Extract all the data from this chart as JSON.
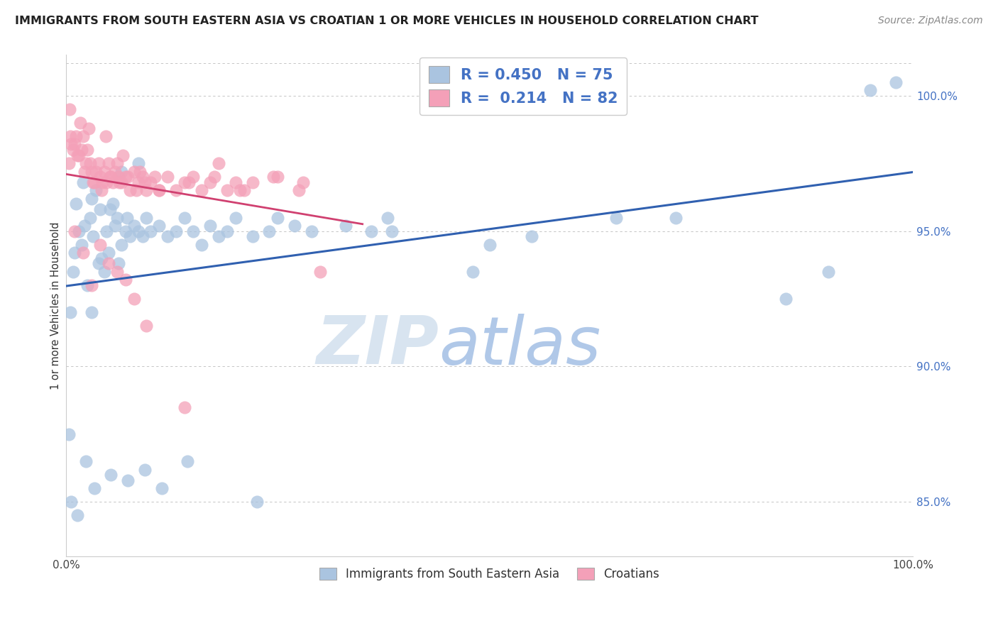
{
  "title": "IMMIGRANTS FROM SOUTH EASTERN ASIA VS CROATIAN 1 OR MORE VEHICLES IN HOUSEHOLD CORRELATION CHART",
  "source": "Source: ZipAtlas.com",
  "ylabel": "1 or more Vehicles in Household",
  "xlim": [
    0.0,
    100.0
  ],
  "ylim": [
    83.0,
    101.5
  ],
  "yticks": [
    85.0,
    90.0,
    95.0,
    100.0
  ],
  "blue_R": 0.45,
  "blue_N": 75,
  "pink_R": 0.214,
  "pink_N": 82,
  "blue_color": "#aac4e0",
  "pink_color": "#f4a0b8",
  "blue_line_color": "#3060b0",
  "pink_line_color": "#d04070",
  "watermark_zip": "ZIP",
  "watermark_atlas": "atlas",
  "watermark_zip_color": "#d8e4f0",
  "watermark_atlas_color": "#b0c8e8",
  "legend_label_blue": "Immigrants from South Eastern Asia",
  "legend_label_pink": "Croatians",
  "blue_x": [
    0.3,
    0.5,
    0.8,
    1.0,
    1.2,
    1.5,
    1.8,
    2.0,
    2.2,
    2.5,
    2.8,
    3.0,
    3.2,
    3.5,
    3.8,
    4.0,
    4.2,
    4.5,
    4.8,
    5.0,
    5.2,
    5.5,
    5.8,
    6.0,
    6.2,
    6.5,
    7.0,
    7.2,
    7.5,
    8.0,
    8.5,
    9.0,
    9.5,
    10.0,
    11.0,
    12.0,
    13.0,
    14.0,
    15.0,
    16.0,
    17.0,
    18.0,
    19.0,
    20.0,
    22.0,
    24.0,
    25.0,
    27.0,
    29.0,
    33.0,
    36.0,
    38.0,
    38.5,
    48.0,
    50.0,
    55.0,
    65.0,
    72.0,
    95.0,
    98.0,
    0.6,
    1.3,
    2.3,
    3.3,
    5.3,
    7.3,
    9.3,
    11.3,
    14.3,
    22.5,
    85.0,
    90.0,
    3.0,
    6.5,
    8.5
  ],
  "blue_y": [
    87.5,
    92.0,
    93.5,
    94.2,
    96.0,
    95.0,
    94.5,
    96.8,
    95.2,
    93.0,
    95.5,
    96.2,
    94.8,
    96.5,
    93.8,
    95.8,
    94.0,
    93.5,
    95.0,
    94.2,
    95.8,
    96.0,
    95.2,
    95.5,
    93.8,
    94.5,
    95.0,
    95.5,
    94.8,
    95.2,
    95.0,
    94.8,
    95.5,
    95.0,
    95.2,
    94.8,
    95.0,
    95.5,
    95.0,
    94.5,
    95.2,
    94.8,
    95.0,
    95.5,
    94.8,
    95.0,
    95.5,
    95.2,
    95.0,
    95.2,
    95.0,
    95.5,
    95.0,
    93.5,
    94.5,
    94.8,
    95.5,
    95.5,
    100.2,
    100.5,
    85.0,
    84.5,
    86.5,
    85.5,
    86.0,
    85.8,
    86.2,
    85.5,
    86.5,
    85.0,
    92.5,
    93.5,
    92.0,
    97.2,
    97.5
  ],
  "pink_x": [
    0.3,
    0.5,
    0.8,
    1.0,
    1.2,
    1.5,
    1.8,
    2.0,
    2.2,
    2.5,
    2.8,
    3.0,
    3.2,
    3.5,
    3.8,
    4.0,
    4.2,
    4.5,
    4.8,
    5.0,
    5.2,
    5.5,
    5.8,
    6.0,
    6.2,
    6.5,
    7.0,
    7.5,
    8.0,
    8.5,
    9.0,
    9.5,
    10.0,
    10.5,
    11.0,
    12.0,
    13.0,
    14.0,
    15.0,
    16.0,
    17.0,
    18.0,
    19.0,
    20.0,
    21.0,
    22.0,
    25.0,
    28.0,
    0.6,
    1.3,
    2.3,
    3.3,
    4.3,
    5.3,
    6.3,
    7.3,
    8.3,
    9.3,
    0.4,
    1.7,
    2.7,
    4.7,
    6.7,
    8.7,
    11.0,
    14.5,
    17.5,
    20.5,
    24.5,
    27.5,
    30.0,
    1.0,
    2.0,
    3.0,
    4.0,
    5.0,
    6.0,
    7.0,
    8.0,
    9.5,
    14.0
  ],
  "pink_y": [
    97.5,
    98.5,
    98.0,
    98.2,
    98.5,
    97.8,
    98.0,
    98.5,
    97.2,
    98.0,
    97.5,
    97.2,
    96.8,
    97.2,
    97.5,
    97.0,
    96.5,
    97.2,
    96.8,
    97.5,
    97.0,
    96.8,
    97.2,
    97.5,
    97.0,
    96.8,
    97.0,
    96.5,
    97.2,
    96.8,
    97.0,
    96.5,
    96.8,
    97.0,
    96.5,
    97.0,
    96.5,
    96.8,
    97.0,
    96.5,
    96.8,
    97.5,
    96.5,
    96.8,
    96.5,
    96.8,
    97.0,
    96.8,
    98.2,
    97.8,
    97.5,
    96.8,
    96.8,
    97.0,
    96.8,
    97.0,
    96.5,
    96.8,
    99.5,
    99.0,
    98.8,
    98.5,
    97.8,
    97.2,
    96.5,
    96.8,
    97.0,
    96.5,
    97.0,
    96.5,
    93.5,
    95.0,
    94.2,
    93.0,
    94.5,
    93.8,
    93.5,
    93.2,
    92.5,
    91.5,
    88.5
  ]
}
